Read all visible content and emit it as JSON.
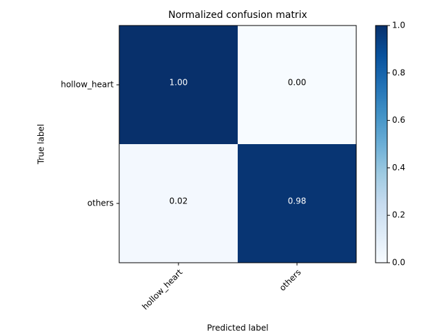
{
  "chart_data": {
    "type": "heatmap",
    "title": "Normalized confusion matrix",
    "x_label": "Predicted label",
    "y_label": "True label",
    "x_categories": [
      "hollow_heart",
      "others"
    ],
    "y_categories": [
      "hollow_heart",
      "others"
    ],
    "values": [
      [
        1.0,
        0.0
      ],
      [
        0.02,
        0.98
      ]
    ],
    "value_labels": [
      [
        "1.00",
        "0.00"
      ],
      [
        "0.02",
        "0.98"
      ]
    ],
    "zlim": [
      0,
      1
    ],
    "zticks": [
      {
        "value": 0,
        "label": "0.0"
      },
      {
        "value": 0.2,
        "label": "0.2"
      },
      {
        "value": 0.4,
        "label": "0.4"
      },
      {
        "value": 0.6,
        "label": "0.6"
      },
      {
        "value": 0.8,
        "label": "0.8"
      },
      {
        "value": 1,
        "label": "1.0"
      }
    ],
    "colorscale": [
      "#f7fbff",
      "#deebf7",
      "#c6dbef",
      "#9ecae1",
      "#6baed6",
      "#4292c6",
      "#2171b5",
      "#08519c",
      "#08306b"
    ]
  }
}
